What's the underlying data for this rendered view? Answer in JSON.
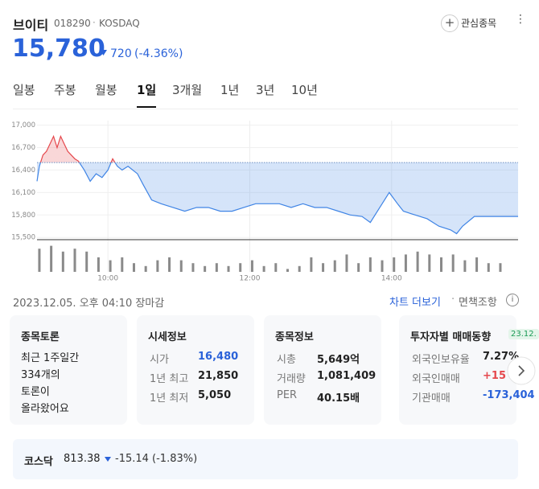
{
  "header": {
    "name": "브이티",
    "code": "018290",
    "market": "KOSDAQ",
    "watch_button": "관심종목",
    "price": "15,780",
    "change": "720",
    "change_pct": "(-4.36%)"
  },
  "tabs": [
    "일봉",
    "주봉",
    "월봉",
    "1일",
    "3개월",
    "1년",
    "3년",
    "10년"
  ],
  "selected_tab": 3,
  "chart_data": {
    "type": "line",
    "x": [
      540,
      542,
      545,
      548,
      551,
      554,
      557,
      560,
      563,
      566,
      569,
      572,
      575,
      580,
      585,
      590,
      595,
      600,
      604,
      608,
      612,
      617,
      625,
      630,
      637,
      645,
      655,
      665,
      675,
      685,
      695,
      705,
      715,
      725,
      735,
      745,
      755,
      765,
      775,
      785,
      795,
      805,
      815,
      822,
      830,
      838,
      845,
      850,
      860,
      870,
      880,
      890,
      895,
      900,
      910,
      922,
      947
    ],
    "series": [
      {
        "name": "브이티",
        "values": [
          16250,
          16450,
          16600,
          16650,
          16750,
          16850,
          16700,
          16850,
          16750,
          16650,
          16600,
          16550,
          16520,
          16400,
          16250,
          16350,
          16300,
          16400,
          16550,
          16450,
          16400,
          16450,
          16350,
          16200,
          16000,
          15950,
          15900,
          15850,
          15900,
          15900,
          15850,
          15850,
          15900,
          15950,
          15950,
          15950,
          15900,
          15950,
          15900,
          15900,
          15850,
          15800,
          15780,
          15700,
          15900,
          16100,
          15950,
          15850,
          15800,
          15750,
          15650,
          15600,
          15550,
          15650,
          15780,
          15780,
          15780
        ]
      }
    ],
    "up_color": "#e5484d",
    "down_color": "#3f84e5",
    "reference_line": 16500,
    "xlim": [
      540,
      947
    ],
    "xticks": [
      {
        "value": 600,
        "label": "10:00"
      },
      {
        "value": 720,
        "label": "12:00"
      },
      {
        "value": 840,
        "label": "14:00"
      }
    ],
    "ylim": [
      15470,
      17060
    ],
    "yticks": [
      {
        "value": 15500,
        "label": "15,500"
      },
      {
        "value": 15800,
        "label": "15,800"
      },
      {
        "value": 16100,
        "label": "16,100"
      },
      {
        "value": 16400,
        "label": "16,400"
      },
      {
        "value": 16700,
        "label": "16,700"
      },
      {
        "value": 17000,
        "label": "17,000"
      }
    ],
    "grid": true,
    "volume": {
      "x": [
        542,
        552,
        562,
        572,
        582,
        592,
        602,
        612,
        622,
        632,
        642,
        652,
        662,
        672,
        682,
        692,
        702,
        712,
        722,
        732,
        742,
        752,
        762,
        772,
        782,
        792,
        802,
        812,
        822,
        832,
        842,
        852,
        862,
        872,
        882,
        892,
        902,
        912,
        922,
        932
      ],
      "values": [
        8,
        9,
        7,
        8,
        7,
        5,
        4,
        5,
        3,
        2,
        4,
        5,
        4,
        3,
        2,
        3,
        2,
        3,
        4,
        2,
        3,
        1,
        2,
        5,
        3,
        4,
        6,
        3,
        5,
        4,
        5,
        6,
        7,
        6,
        5,
        6,
        4,
        5,
        3,
        3
      ],
      "ylim": [
        0,
        10
      ],
      "color": "#8a8a8a"
    }
  },
  "timestamp": "2023.12.05. 오후 04:10 장마감",
  "links": [
    "차트 더보기",
    "면책조항"
  ],
  "cards": [
    {
      "title": "종목토론",
      "lines": [
        "최근 1주일간",
        "334개의",
        "토론이",
        "올라왔어요"
      ]
    },
    {
      "title": "시세정보",
      "rows": [
        [
          "시가",
          "16,480"
        ],
        [
          "1년 최고",
          "21,850"
        ],
        [
          "1년 최저",
          "5,050"
        ]
      ]
    },
    {
      "title": "종목정보",
      "rows": [
        [
          "시총",
          "5,649억"
        ],
        [
          "거래량",
          "1,081,409"
        ],
        [
          "PER",
          "40.15배"
        ]
      ]
    },
    {
      "title": "투자자별 매매동향",
      "badge": "23.12.",
      "rows": [
        [
          "외국인보유율",
          "7.27%"
        ],
        [
          "외국인매매",
          "+15"
        ],
        [
          "기관매매",
          "-173,404"
        ]
      ]
    }
  ],
  "index_bar": {
    "name": "코스닥",
    "value": "813.38",
    "change": "-15.14 (-1.83%)"
  }
}
